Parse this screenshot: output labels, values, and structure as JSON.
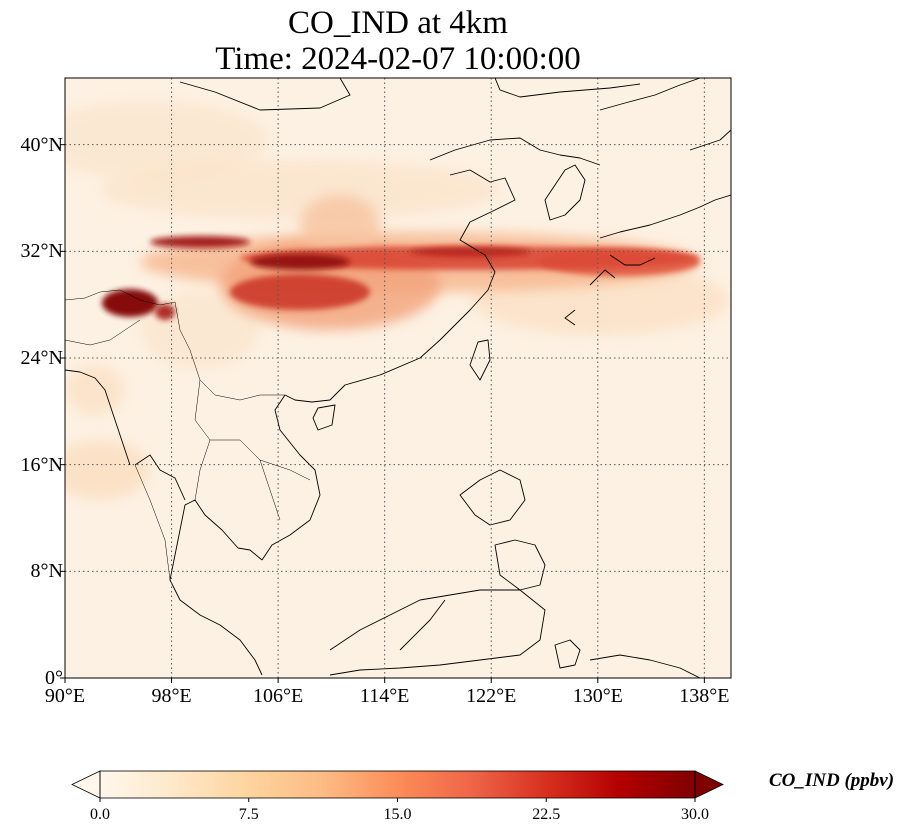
{
  "title_line1": "CO_IND at 4km",
  "title_line2": "Time: 2024-02-07 10:00:00",
  "map": {
    "lon_range": [
      90,
      140
    ],
    "lat_range": [
      0,
      45
    ],
    "lat_ticks": [
      {
        "value": 40,
        "label": "40°N"
      },
      {
        "value": 32,
        "label": "32°N"
      },
      {
        "value": 24,
        "label": "24°N"
      },
      {
        "value": 16,
        "label": "16°N"
      },
      {
        "value": 8,
        "label": "8°N"
      },
      {
        "value": 0,
        "label": "0°"
      }
    ],
    "lon_ticks": [
      {
        "value": 90,
        "label": "90°E"
      },
      {
        "value": 98,
        "label": "98°E"
      },
      {
        "value": 106,
        "label": "106°E"
      },
      {
        "value": 114,
        "label": "114°E"
      },
      {
        "value": 122,
        "label": "122°E"
      },
      {
        "value": 130,
        "label": "130°E"
      },
      {
        "value": 138,
        "label": "138°E"
      }
    ]
  },
  "colorbar": {
    "label": "CO_IND (ppbv)",
    "min": 0.0,
    "max": 30.0,
    "ticks": [
      "0.0",
      "7.5",
      "15.0",
      "22.5",
      "30.0"
    ],
    "colors": [
      "#fff7ec",
      "#fee8c8",
      "#fdd49e",
      "#fdbb84",
      "#fc8d59",
      "#ef6548",
      "#d7301f",
      "#b30000",
      "#7f0000"
    ]
  }
}
